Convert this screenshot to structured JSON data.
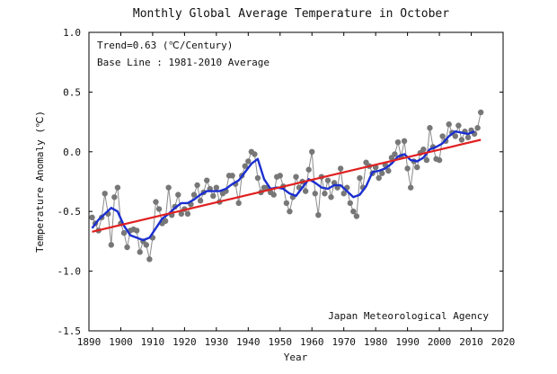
{
  "chart_data": {
    "type": "line",
    "title": "Monthly Global Average Temperature in October",
    "xlabel": "Year",
    "ylabel": "Temperature Anomaly (℃)",
    "xlim": [
      1890,
      2020
    ],
    "ylim": [
      -1.5,
      1.0
    ],
    "x_ticks": [
      1890,
      1900,
      1910,
      1920,
      1930,
      1940,
      1950,
      1960,
      1970,
      1980,
      1990,
      2000,
      2010,
      2020
    ],
    "y_ticks": [
      -1.5,
      -1.0,
      -0.5,
      0.0,
      0.5,
      1.0
    ],
    "y_tick_labels": [
      "-1.5",
      "-1.0",
      "-0.5",
      "0.0",
      "0.5",
      "1.0"
    ],
    "grid": false,
    "annotations": {
      "trend": "Trend=0.63 (℃/Century)",
      "baseline": "Base Line : 1981-2010 Average",
      "source": "Japan Meteorological Agency"
    },
    "colors": {
      "anomaly": "#777777",
      "five_year_mean": "#1a2ed0",
      "trend": "#e02020"
    },
    "series": [
      {
        "style": "gray-line-markers",
        "x": [
          1891,
          1892,
          1893,
          1894,
          1895,
          1896,
          1897,
          1898,
          1899,
          1900,
          1901,
          1902,
          1903,
          1904,
          1905,
          1906,
          1907,
          1908,
          1909,
          1910,
          1911,
          1912,
          1913,
          1914,
          1915,
          1916,
          1917,
          1918,
          1919,
          1920,
          1921,
          1922,
          1923,
          1924,
          1925,
          1926,
          1927,
          1928,
          1929,
          1930,
          1931,
          1932,
          1933,
          1934,
          1935,
          1936,
          1937,
          1938,
          1939,
          1940,
          1941,
          1942,
          1943,
          1944,
          1945,
          1946,
          1947,
          1948,
          1949,
          1950,
          1951,
          1952,
          1953,
          1954,
          1955,
          1956,
          1957,
          1958,
          1959,
          1960,
          1961,
          1962,
          1963,
          1964,
          1965,
          1966,
          1967,
          1968,
          1969,
          1970,
          1971,
          1972,
          1973,
          1974,
          1975,
          1976,
          1977,
          1978,
          1979,
          1980,
          1981,
          1982,
          1983,
          1984,
          1985,
          1986,
          1987,
          1988,
          1989,
          1990,
          1991,
          1992,
          1993,
          1994,
          1995,
          1996,
          1997,
          1998,
          1999,
          2000,
          2001,
          2002,
          2003,
          2004,
          2005,
          2006,
          2007,
          2008,
          2009,
          2010,
          2011,
          2012,
          2013
        ],
        "y": [
          -0.55,
          -0.6,
          -0.66,
          -0.55,
          -0.35,
          -0.52,
          -0.78,
          -0.38,
          -0.3,
          -0.6,
          -0.68,
          -0.8,
          -0.66,
          -0.65,
          -0.66,
          -0.84,
          -0.75,
          -0.78,
          -0.9,
          -0.72,
          -0.42,
          -0.48,
          -0.6,
          -0.58,
          -0.3,
          -0.53,
          -0.46,
          -0.36,
          -0.52,
          -0.48,
          -0.52,
          -0.44,
          -0.36,
          -0.28,
          -0.41,
          -0.34,
          -0.24,
          -0.31,
          -0.37,
          -0.3,
          -0.42,
          -0.35,
          -0.33,
          -0.2,
          -0.2,
          -0.27,
          -0.43,
          -0.2,
          -0.12,
          -0.08,
          0.0,
          -0.02,
          -0.22,
          -0.34,
          -0.3,
          -0.3,
          -0.34,
          -0.36,
          -0.21,
          -0.2,
          -0.29,
          -0.43,
          -0.5,
          -0.38,
          -0.21,
          -0.3,
          -0.25,
          -0.33,
          -0.15,
          0.0,
          -0.35,
          -0.53,
          -0.21,
          -0.35,
          -0.24,
          -0.38,
          -0.26,
          -0.3,
          -0.14,
          -0.35,
          -0.3,
          -0.43,
          -0.5,
          -0.54,
          -0.22,
          -0.3,
          -0.09,
          -0.12,
          -0.18,
          -0.13,
          -0.22,
          -0.18,
          -0.11,
          -0.16,
          -0.05,
          -0.02,
          0.08,
          -0.04,
          0.09,
          -0.14,
          -0.3,
          -0.08,
          -0.13,
          -0.01,
          0.02,
          -0.07,
          0.2,
          0.04,
          -0.06,
          -0.07,
          0.13,
          0.09,
          0.23,
          0.16,
          0.13,
          0.22,
          0.1,
          0.17,
          0.12,
          0.18,
          0.15,
          0.2,
          0.33
        ]
      },
      {
        "style": "blue-smoothed",
        "x": [
          1891,
          1893,
          1895,
          1897,
          1899,
          1901,
          1903,
          1905,
          1907,
          1909,
          1911,
          1913,
          1915,
          1917,
          1919,
          1921,
          1923,
          1925,
          1927,
          1929,
          1931,
          1933,
          1935,
          1937,
          1939,
          1941,
          1943,
          1945,
          1947,
          1949,
          1951,
          1953,
          1955,
          1957,
          1959,
          1961,
          1963,
          1965,
          1967,
          1969,
          1971,
          1973,
          1975,
          1977,
          1979,
          1981,
          1983,
          1985,
          1987,
          1989,
          1991,
          1993,
          1995,
          1997,
          1999,
          2001,
          2003,
          2005,
          2007,
          2009,
          2011
        ],
        "y": [
          -0.64,
          -0.57,
          -0.52,
          -0.47,
          -0.5,
          -0.62,
          -0.7,
          -0.72,
          -0.74,
          -0.72,
          -0.64,
          -0.56,
          -0.52,
          -0.47,
          -0.43,
          -0.43,
          -0.4,
          -0.36,
          -0.33,
          -0.33,
          -0.33,
          -0.31,
          -0.27,
          -0.24,
          -0.17,
          -0.1,
          -0.06,
          -0.23,
          -0.31,
          -0.3,
          -0.31,
          -0.35,
          -0.37,
          -0.3,
          -0.23,
          -0.26,
          -0.3,
          -0.31,
          -0.28,
          -0.28,
          -0.33,
          -0.38,
          -0.36,
          -0.29,
          -0.17,
          -0.16,
          -0.14,
          -0.1,
          -0.04,
          -0.02,
          -0.07,
          -0.08,
          -0.05,
          0.02,
          0.04,
          0.07,
          0.13,
          0.17,
          0.16,
          0.15,
          0.17
        ]
      },
      {
        "style": "red-trend",
        "x": [
          1891,
          2013
        ],
        "y": [
          -0.67,
          0.1
        ]
      }
    ]
  }
}
